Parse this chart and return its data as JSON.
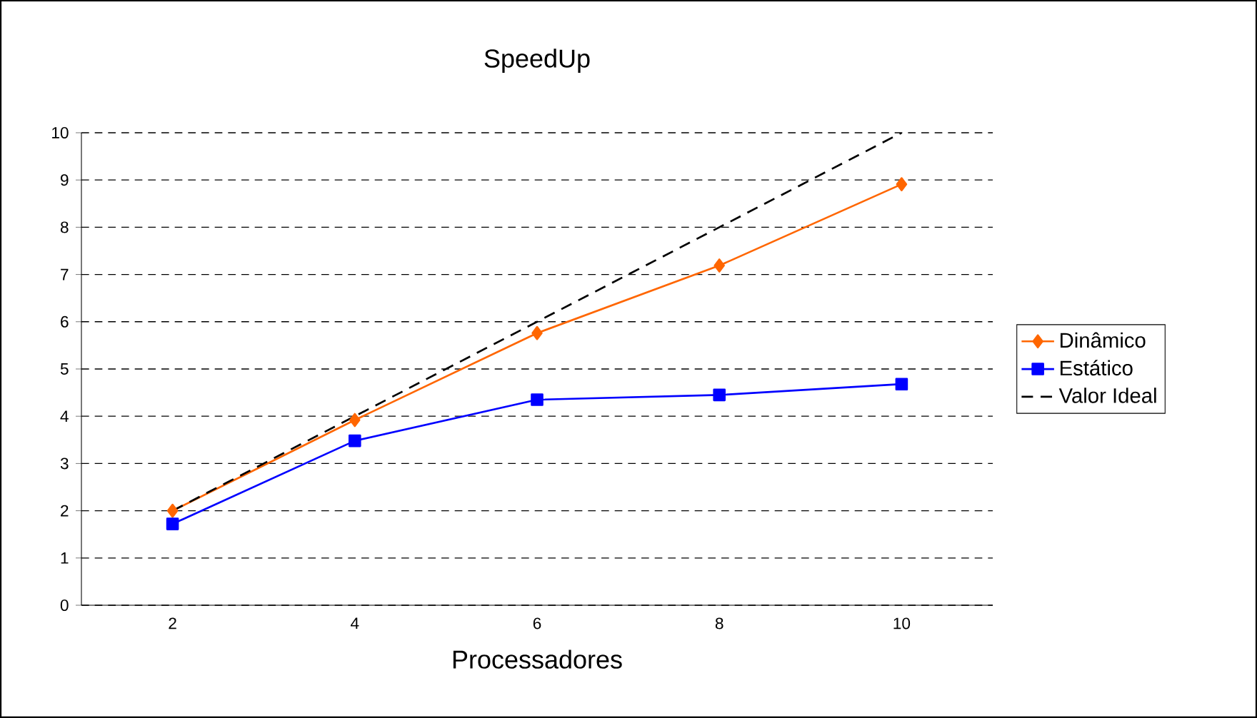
{
  "chart_data": {
    "type": "line",
    "title": "SpeedUp",
    "xlabel": "Processadores",
    "categories": [
      "2",
      "4",
      "6",
      "8",
      "10"
    ],
    "series": [
      {
        "name": "Dinâmico",
        "color": "#ff6600",
        "marker": "diamond",
        "line_style": "solid",
        "values": [
          2.0,
          3.92,
          5.76,
          7.19,
          8.91
        ]
      },
      {
        "name": "Estático",
        "color": "#0000ff",
        "marker": "square",
        "line_style": "solid",
        "values": [
          1.72,
          3.48,
          4.35,
          4.45,
          4.68
        ]
      },
      {
        "name": "Valor Ideal",
        "color": "#000000",
        "marker": "none",
        "line_style": "dashed",
        "values": [
          2,
          4,
          6,
          8,
          10
        ]
      }
    ],
    "ylim": [
      0,
      10
    ],
    "yticks": [
      0,
      1,
      2,
      3,
      4,
      5,
      6,
      7,
      8,
      9,
      10
    ],
    "grid": "y",
    "legend": "right"
  }
}
